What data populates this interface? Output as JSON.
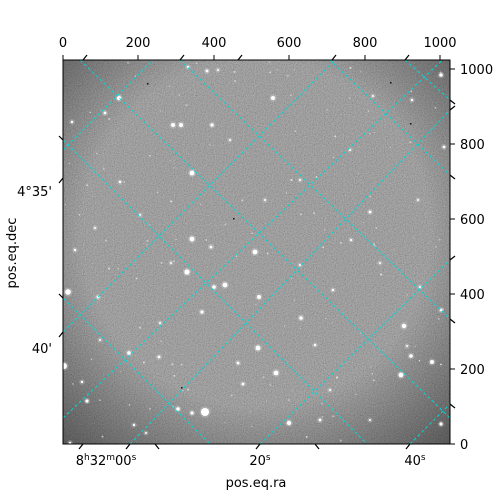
{
  "figure": {
    "xlabel": "pos.eq.ra",
    "ylabel": "pos.eq.dec",
    "pixel_x_ticks": [
      "0",
      "200",
      "400",
      "600",
      "800",
      "1000"
    ],
    "pixel_y_ticks": [
      "0",
      "200",
      "400",
      "600",
      "800",
      "1000"
    ],
    "ra_ticks": [
      {
        "h": "8",
        "m": "32",
        "s": "00"
      },
      {
        "s": "20"
      },
      {
        "s": "40"
      }
    ],
    "dec_ticks": [
      "4°35'",
      "40'"
    ]
  },
  "colors": {
    "grid": "#00d8d8",
    "background": "#7a7a7a",
    "frame": "#000000"
  }
}
